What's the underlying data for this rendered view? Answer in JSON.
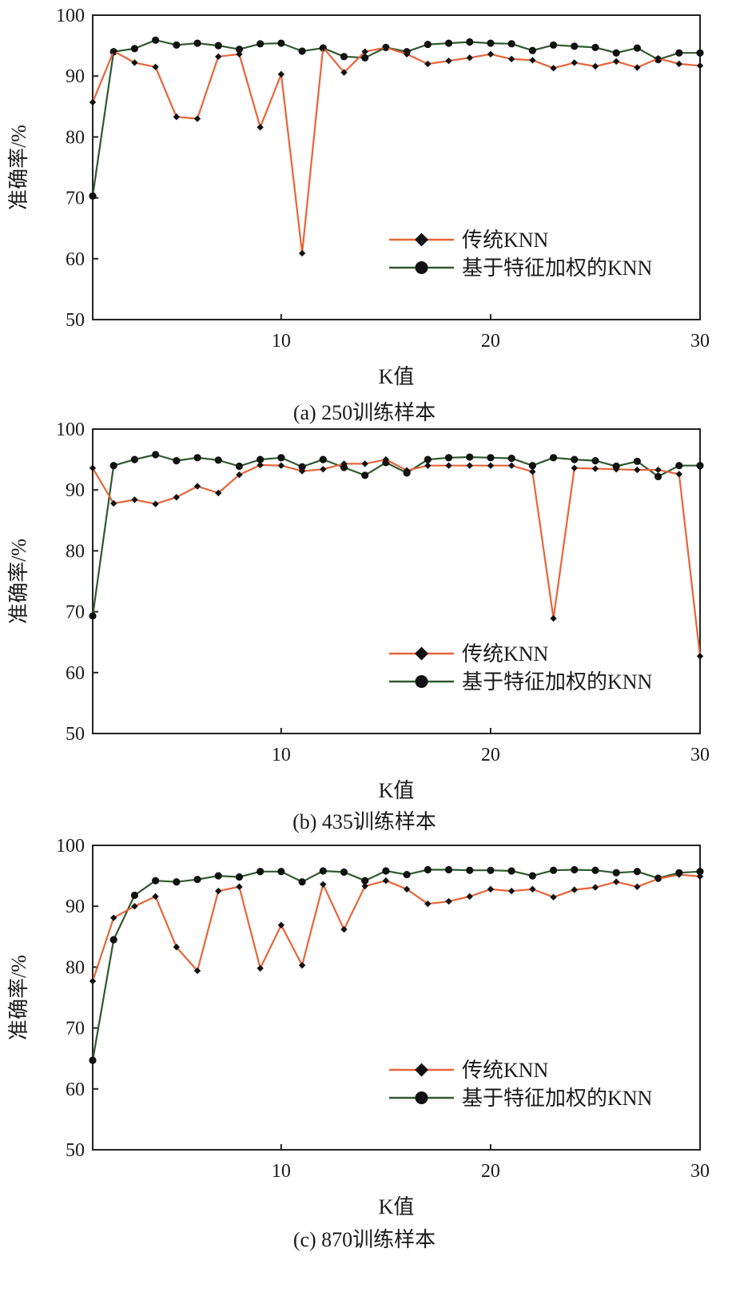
{
  "colors": {
    "traditional": "#e8643a",
    "weighted": "#2e5a2e",
    "marker": "#111111",
    "axis": "#222222"
  },
  "chart_data": [
    {
      "type": "line",
      "caption": "(a) 250训练样本",
      "xlabel": "K值",
      "ylabel": "准确率/%",
      "xlim": [
        1,
        30
      ],
      "ylim": [
        50,
        100
      ],
      "xticks": [
        10,
        20,
        30
      ],
      "yticks": [
        50,
        60,
        70,
        80,
        90,
        100
      ],
      "grid": false,
      "legend_position": "lower-right",
      "x": [
        1,
        2,
        3,
        4,
        5,
        6,
        7,
        8,
        9,
        10,
        11,
        12,
        13,
        14,
        15,
        16,
        17,
        18,
        19,
        20,
        21,
        22,
        23,
        24,
        25,
        26,
        27,
        28,
        29,
        30
      ],
      "series": [
        {
          "name": "传统KNN",
          "marker": "diamond",
          "values": [
            85.7,
            94.1,
            92.2,
            91.5,
            83.3,
            83.0,
            93.2,
            93.6,
            81.6,
            90.3,
            60.9,
            94.7,
            90.6,
            94.0,
            94.7,
            93.6,
            92.0,
            92.5,
            93.0,
            93.6,
            92.8,
            92.6,
            91.3,
            92.2,
            91.6,
            92.4,
            91.4,
            92.9,
            92.0,
            91.7
          ]
        },
        {
          "name": "基于特征加权的KNN",
          "marker": "circle",
          "values": [
            70.3,
            94.0,
            94.5,
            95.9,
            95.1,
            95.4,
            95.0,
            94.4,
            95.3,
            95.4,
            94.1,
            94.6,
            93.2,
            93.0,
            94.7,
            94.0,
            95.2,
            95.4,
            95.6,
            95.4,
            95.3,
            94.2,
            95.1,
            94.9,
            94.7,
            93.8,
            94.6,
            92.7,
            93.8,
            93.8
          ]
        }
      ]
    },
    {
      "type": "line",
      "caption": "(b) 435训练样本",
      "xlabel": "K值",
      "ylabel": "准确率/%",
      "xlim": [
        1,
        30
      ],
      "ylim": [
        50,
        100
      ],
      "xticks": [
        10,
        20,
        30
      ],
      "yticks": [
        50,
        60,
        70,
        80,
        90,
        100
      ],
      "grid": false,
      "legend_position": "lower-right",
      "x": [
        1,
        2,
        3,
        4,
        5,
        6,
        7,
        8,
        9,
        10,
        11,
        12,
        13,
        14,
        15,
        16,
        17,
        18,
        19,
        20,
        21,
        22,
        23,
        24,
        25,
        26,
        27,
        28,
        29,
        30
      ],
      "series": [
        {
          "name": "传统KNN",
          "marker": "diamond",
          "values": [
            93.6,
            87.8,
            88.4,
            87.7,
            88.8,
            90.6,
            89.5,
            92.5,
            94.1,
            94.0,
            93.1,
            93.4,
            94.3,
            94.3,
            95.0,
            93.2,
            94.0,
            94.0,
            94.0,
            94.0,
            94.0,
            93.0,
            68.9,
            93.6,
            93.5,
            93.4,
            93.3,
            93.3,
            92.6,
            62.7
          ]
        },
        {
          "name": "基于特征加权的KNN",
          "marker": "circle",
          "values": [
            69.3,
            94.0,
            95.0,
            95.8,
            94.8,
            95.3,
            94.9,
            93.9,
            95.0,
            95.3,
            93.8,
            95.0,
            93.7,
            92.4,
            94.5,
            92.8,
            95.0,
            95.3,
            95.4,
            95.3,
            95.2,
            94.0,
            95.3,
            95.0,
            94.8,
            93.9,
            94.7,
            92.2,
            94.0,
            94.0
          ]
        }
      ]
    },
    {
      "type": "line",
      "caption": "(c) 870训练样本",
      "xlabel": "K值",
      "ylabel": "准确率/%",
      "xlim": [
        1,
        30
      ],
      "ylim": [
        50,
        100
      ],
      "xticks": [
        10,
        20,
        30
      ],
      "yticks": [
        50,
        60,
        70,
        80,
        90,
        100
      ],
      "grid": false,
      "legend_position": "lower-right",
      "x": [
        1,
        2,
        3,
        4,
        5,
        6,
        7,
        8,
        9,
        10,
        11,
        12,
        13,
        14,
        15,
        16,
        17,
        18,
        19,
        20,
        21,
        22,
        23,
        24,
        25,
        26,
        27,
        28,
        29,
        30
      ],
      "series": [
        {
          "name": "传统KNN",
          "marker": "diamond",
          "values": [
            77.7,
            88.1,
            90.0,
            91.6,
            83.3,
            79.4,
            92.5,
            93.2,
            79.8,
            86.9,
            80.3,
            93.6,
            86.2,
            93.3,
            94.2,
            92.8,
            90.4,
            90.8,
            91.6,
            92.8,
            92.5,
            92.8,
            91.5,
            92.7,
            93.1,
            94.0,
            93.2,
            94.5,
            95.2,
            94.9
          ]
        },
        {
          "name": "基于特征加权的KNN",
          "marker": "circle",
          "values": [
            64.7,
            84.5,
            91.8,
            94.2,
            94.0,
            94.4,
            95.0,
            94.8,
            95.7,
            95.7,
            94.0,
            95.8,
            95.6,
            94.2,
            95.8,
            95.2,
            96.0,
            96.0,
            95.9,
            95.9,
            95.8,
            95.0,
            95.9,
            96.0,
            95.9,
            95.5,
            95.7,
            94.6,
            95.5,
            95.7
          ]
        }
      ]
    }
  ]
}
